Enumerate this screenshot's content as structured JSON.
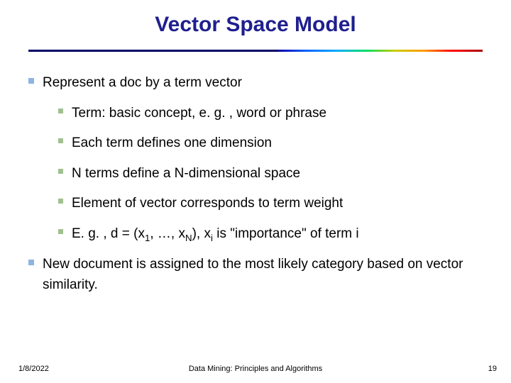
{
  "title": {
    "text": "Vector Space Model",
    "color": "#1f1f8f",
    "fontsize": 30
  },
  "rainbow": {
    "left_color": "#000066",
    "left_width_pct": 55,
    "gradient_stops": [
      "#0000aa",
      "#0066ff",
      "#00aaff",
      "#00dd66",
      "#cccc00",
      "#ff9900",
      "#ff0000",
      "#aa0000"
    ]
  },
  "bullets_l1": {
    "fontsize": 19,
    "marker_color": "#8db4e2",
    "items": [
      "Represent a doc by a term vector",
      "New document is assigned to the most likely category based on vector similarity."
    ]
  },
  "bullets_l2": {
    "fontsize": 19,
    "marker_color": "#a0c090",
    "items": [
      "Term: basic concept, e. g. , word or phrase",
      "Each term defines one dimension",
      "N terms define a N-dimensional space",
      "Element of vector corresponds to term weight"
    ],
    "formula_prefix": "E. g. , d = (x",
    "formula_sub1": "1",
    "formula_mid": ", …, x",
    "formula_subN": "N",
    "formula_mid2": "), x",
    "formula_subi": "i",
    "formula_suffix": " is \"importance\" of term i"
  },
  "footer": {
    "date": "1/8/2022",
    "center": "Data Mining: Principles and Algorithms",
    "page": "19",
    "fontsize": 11
  }
}
